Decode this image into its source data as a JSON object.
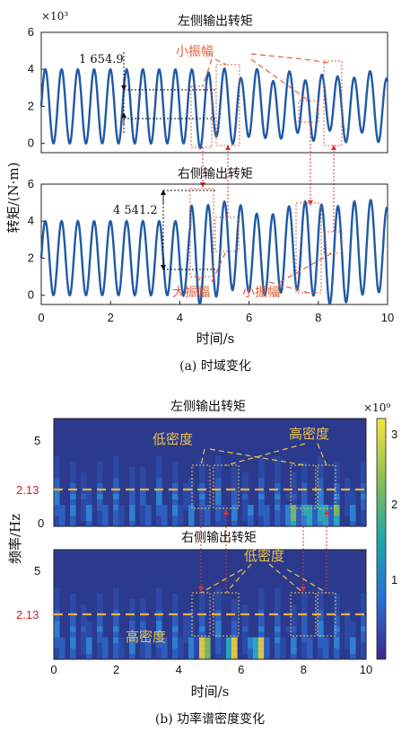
{
  "chart_data": [
    {
      "type": "line",
      "title": "左侧输出转矩",
      "ylabel": "转矩/(N·m)",
      "yexp": "×10³",
      "xlim": [
        0,
        10
      ],
      "ylim": [
        -0.5,
        6
      ],
      "xticks": [
        "0",
        "2",
        "4",
        "6",
        "8",
        "10"
      ],
      "yticks": [
        "0",
        "2",
        "4",
        "6"
      ],
      "series": [
        {
          "baseline": 2.0,
          "amplitude": 2.0,
          "freq_hz": 2.13
        }
      ],
      "annotations": {
        "value": "1 654.9",
        "label": "小振幅"
      }
    },
    {
      "type": "line",
      "title": "右侧输出转矩",
      "xlabel": "时间/s",
      "xlim": [
        0,
        10
      ],
      "ylim": [
        -0.5,
        6
      ],
      "xticks": [
        "0",
        "2",
        "4",
        "6",
        "8",
        "10"
      ],
      "yticks": [
        "0",
        "2",
        "4",
        "6"
      ],
      "series": [
        {
          "baseline": 2.0,
          "amplitude": 2.0,
          "freq_hz": 2.13
        }
      ],
      "annotations": {
        "value": "4 541.2",
        "label_big": "大振幅",
        "label_small": "小振幅"
      }
    },
    {
      "type": "heatmap",
      "title": "左侧输出转矩",
      "ylabel": "频率/Hz",
      "xlim": [
        0,
        10
      ],
      "yticks": [
        "0",
        "5"
      ],
      "ref_line": "2.13",
      "colorbar": {
        "exp": "×10⁹",
        "ticks": [
          "1",
          "2",
          "3"
        ]
      },
      "annotations": {
        "label": "低密度",
        "label2": "高密度"
      }
    },
    {
      "type": "heatmap",
      "title": "右侧输出转矩",
      "xlabel": "时间/s",
      "xlim": [
        0,
        10
      ],
      "xticks": [
        "0",
        "2",
        "4",
        "6",
        "8",
        "10"
      ],
      "yticks": [
        "5"
      ],
      "ref_line": "2.13",
      "annotations": {
        "label": "低密度",
        "label2": "高密度"
      }
    }
  ],
  "captions": {
    "a": "(a) 时域变化",
    "b": "(b) 功率谱密度变化"
  },
  "colors": {
    "line": "#1f5aa6",
    "annotation": "#e0603a",
    "dashed": "#f0b040",
    "bg": "#2b3a8c"
  }
}
